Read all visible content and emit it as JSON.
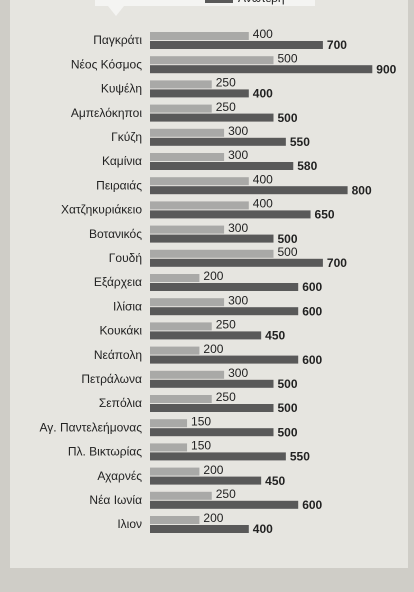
{
  "chart_data": {
    "type": "bar",
    "orientation": "horizontal",
    "categories": [
      "Παγκράτι",
      "Νέος Κόσμος",
      "Κυψέλη",
      "Αμπελόκηποι",
      "Γκύζη",
      "Καμίνια",
      "Πειραιάς",
      "Χατζηκυριάκειο",
      "Βοτανικός",
      "Γουδή",
      "Εξάρχεια",
      "Ιλίσια",
      "Κουκάκι",
      "Νεάπολη",
      "Πετράλωνα",
      "Σεπόλια",
      "Αγ. Παντελεήμονας",
      "Πλ. Βικτωρίας",
      "Αχαρνές",
      "Νέα Ιωνία",
      "Ιλιον"
    ],
    "series": [
      {
        "color": "#a9a9a7",
        "values": [
          400,
          500,
          250,
          250,
          300,
          300,
          400,
          400,
          300,
          500,
          200,
          300,
          250,
          200,
          300,
          250,
          150,
          150,
          200,
          250,
          200
        ]
      },
      {
        "name": "Ανώτερη",
        "color": "#595959",
        "values": [
          700,
          900,
          400,
          500,
          550,
          580,
          800,
          650,
          500,
          700,
          600,
          600,
          450,
          600,
          500,
          500,
          500,
          550,
          450,
          600,
          400
        ]
      }
    ]
  }
}
